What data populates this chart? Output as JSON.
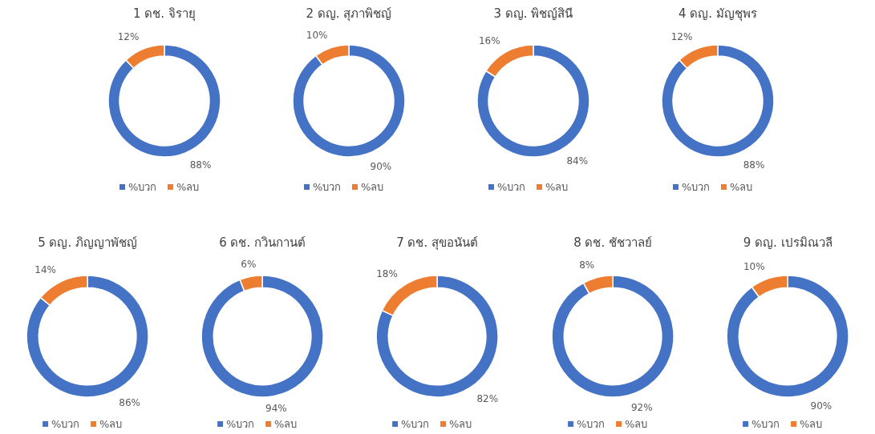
{
  "chart_data": [
    {
      "type": "donut",
      "title": "1 ดช. จิรายุ",
      "categories": [
        "%บวก",
        "%ลบ"
      ],
      "values": [
        88,
        12
      ],
      "colors": [
        "#4472c4",
        "#ed7d31"
      ],
      "value_labels": [
        "88%",
        "12%"
      ],
      "legend": "bottom"
    },
    {
      "type": "donut",
      "title": "2 ดญ. สุภาพิชญ์",
      "categories": [
        "%บวก",
        "%ลบ"
      ],
      "values": [
        90,
        10
      ],
      "colors": [
        "#4472c4",
        "#ed7d31"
      ],
      "value_labels": [
        "90%",
        "10%"
      ],
      "legend": "bottom"
    },
    {
      "type": "donut",
      "title": "3 ดญ. พิชญ์สินี",
      "categories": [
        "%บวก",
        "%ลบ"
      ],
      "values": [
        84,
        16
      ],
      "colors": [
        "#4472c4",
        "#ed7d31"
      ],
      "value_labels": [
        "84%",
        "16%"
      ],
      "legend": "bottom"
    },
    {
      "type": "donut",
      "title": "4 ดญ. มัญชุพร",
      "categories": [
        "%บวก",
        "%ลบ"
      ],
      "values": [
        88,
        12
      ],
      "colors": [
        "#4472c4",
        "#ed7d31"
      ],
      "value_labels": [
        "88%",
        "12%"
      ],
      "legend": "bottom"
    },
    {
      "type": "donut",
      "title": "5 ดญ. ภิญญาพัชญ์",
      "categories": [
        "%บวก",
        "%ลบ"
      ],
      "values": [
        86,
        14
      ],
      "colors": [
        "#4472c4",
        "#ed7d31"
      ],
      "value_labels": [
        "86%",
        "14%"
      ],
      "legend": "bottom"
    },
    {
      "type": "donut",
      "title": "6 ดช. กวินกานต์",
      "categories": [
        "%บวก",
        "%ลบ"
      ],
      "values": [
        94,
        6
      ],
      "colors": [
        "#4472c4",
        "#ed7d31"
      ],
      "value_labels": [
        "94%",
        "6%"
      ],
      "legend": "bottom"
    },
    {
      "type": "donut",
      "title": "7 ดช. สุขอนันต์",
      "categories": [
        "%บวก",
        "%ลบ"
      ],
      "values": [
        82,
        18
      ],
      "colors": [
        "#4472c4",
        "#ed7d31"
      ],
      "value_labels": [
        "82%",
        "18%"
      ],
      "legend": "bottom"
    },
    {
      "type": "donut",
      "title": "8 ดช. ชัชวาลย์",
      "categories": [
        "%บวก",
        "%ลบ"
      ],
      "values": [
        92,
        8
      ],
      "colors": [
        "#4472c4",
        "#ed7d31"
      ],
      "value_labels": [
        "92%",
        "8%"
      ],
      "legend": "bottom"
    },
    {
      "type": "donut",
      "title": "9 ดญ. เปรมิณวลี",
      "categories": [
        "%บวก",
        "%ลบ"
      ],
      "values": [
        90,
        10
      ],
      "colors": [
        "#4472c4",
        "#ed7d31"
      ],
      "value_labels": [
        "90%",
        "10%"
      ],
      "legend": "bottom"
    }
  ]
}
